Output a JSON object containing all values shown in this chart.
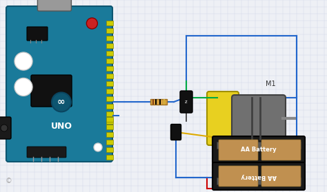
{
  "bg_color": "#eef0f5",
  "grid_color": "#d0d4e8",
  "wire_color": "#2266cc",
  "wire_color_red": "#cc0000",
  "motor_label": "M1",
  "battery_label1": "AA Battery",
  "battery_label2": "AA Battery"
}
